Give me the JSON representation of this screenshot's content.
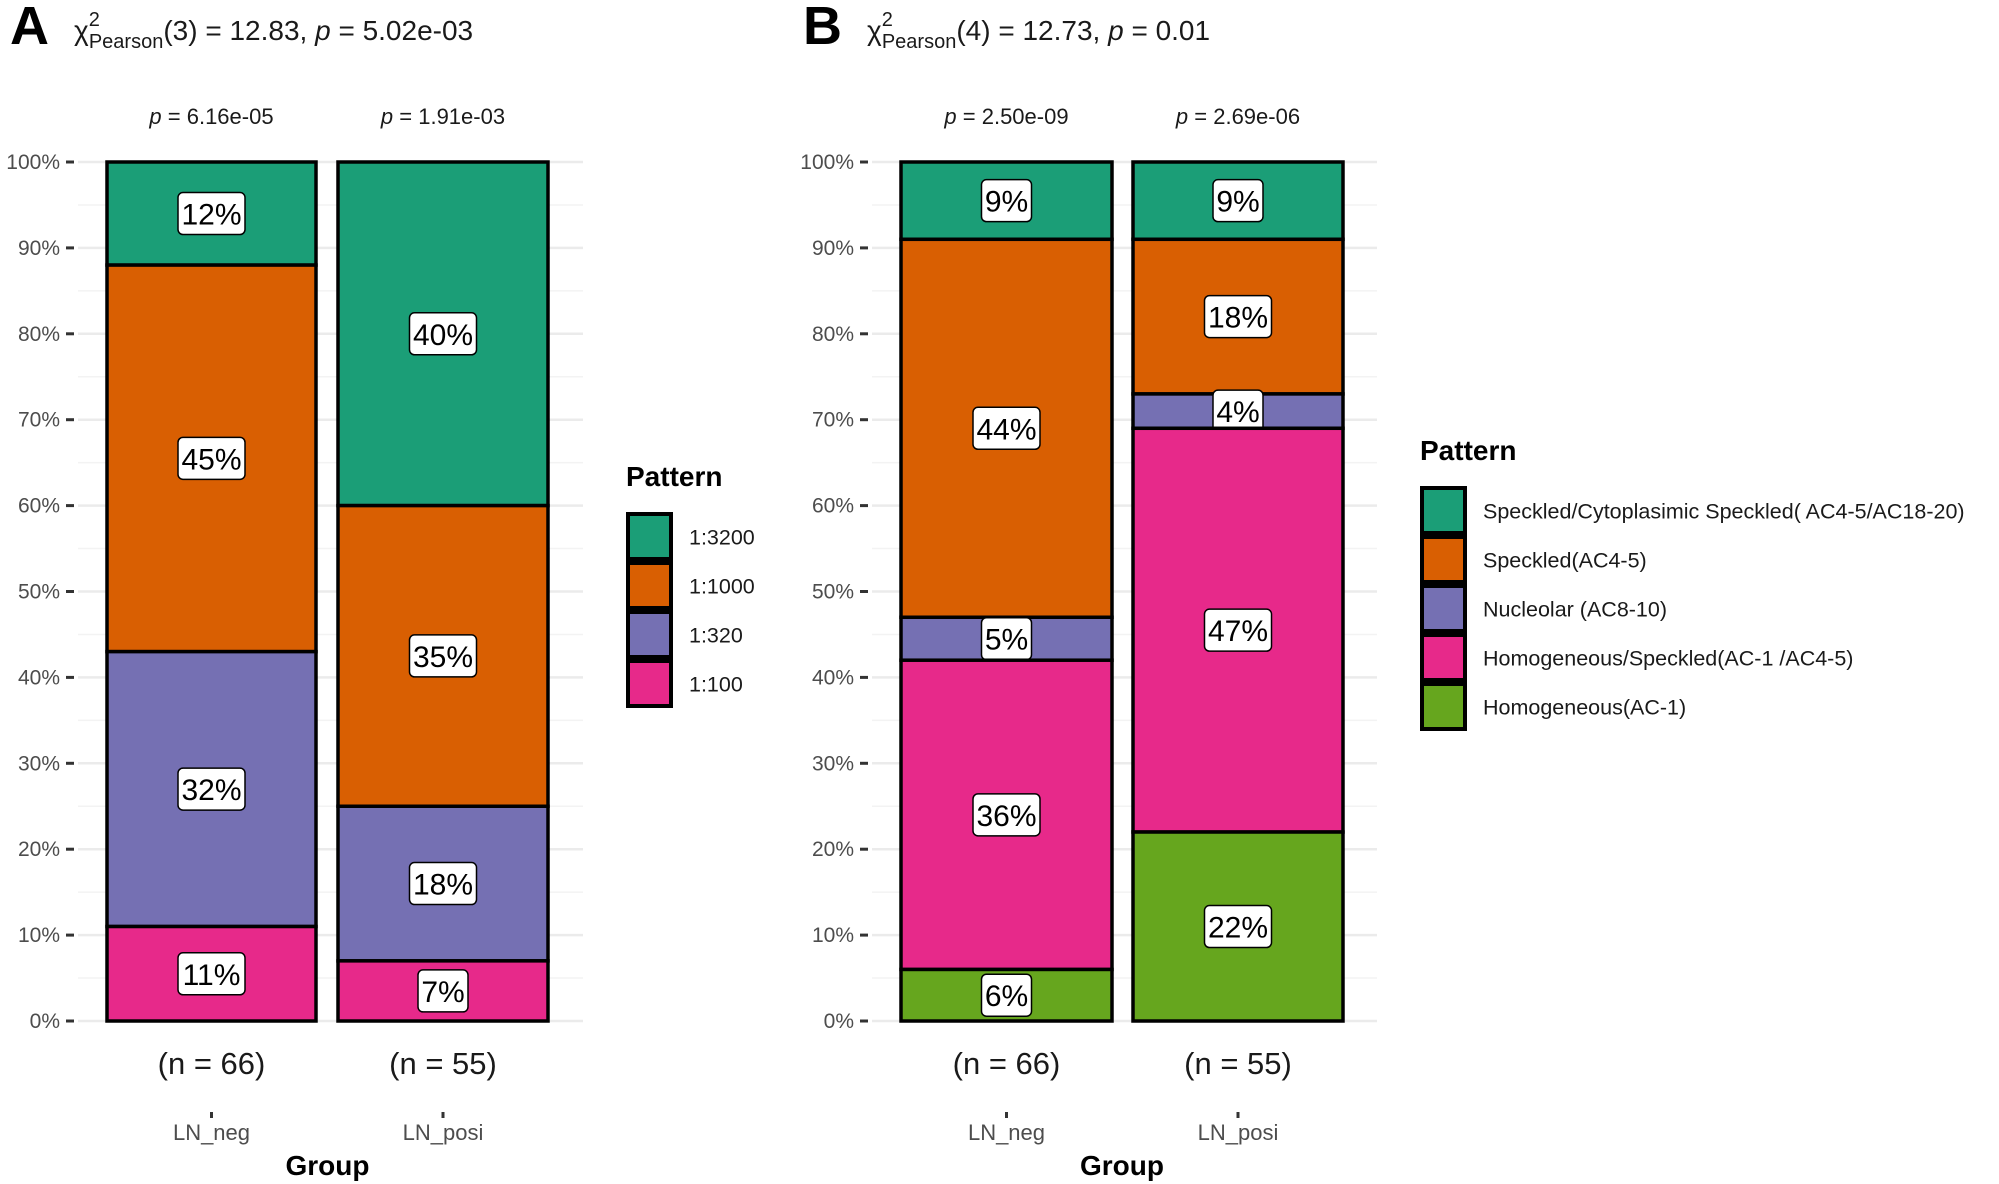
{
  "chart_data": [
    {
      "type": "bar",
      "stacked": true,
      "panel": "A",
      "subtitle": {
        "chi_label": "χ",
        "sup": "2",
        "sub": "Pearson",
        "rest": "(3) = 12.83, ",
        "p_italic": "p",
        "p_rest": " = 5.02e-03"
      },
      "xlabel": "Group",
      "ylabel": "",
      "ylim": [
        0,
        100
      ],
      "yticks": [
        "0%",
        "10%",
        "20%",
        "30%",
        "40%",
        "50%",
        "60%",
        "70%",
        "80%",
        "90%",
        "100%"
      ],
      "categories": [
        "LN_neg",
        "LN_posi"
      ],
      "n_labels": [
        "(n = 66)",
        "(n = 55)"
      ],
      "p_labels": [
        " = 6.16e-05",
        " = 1.91e-03"
      ],
      "legend_title": "Pattern",
      "legend_position": "right",
      "series": [
        {
          "name": "1:3200",
          "color": "#1b9e77",
          "values": [
            12,
            40
          ]
        },
        {
          "name": "1:1000",
          "color": "#d95f02",
          "values": [
            45,
            35
          ]
        },
        {
          "name": "1:320",
          "color": "#7570b3",
          "values": [
            32,
            18
          ]
        },
        {
          "name": "1:100",
          "color": "#e7298a",
          "values": [
            11,
            7
          ]
        }
      ]
    },
    {
      "type": "bar",
      "stacked": true,
      "panel": "B",
      "subtitle": {
        "chi_label": "χ",
        "sup": "2",
        "sub": "Pearson",
        "rest": "(4) = 12.73, ",
        "p_italic": "p",
        "p_rest": " = 0.01"
      },
      "xlabel": "Group",
      "ylabel": "",
      "ylim": [
        0,
        100
      ],
      "yticks": [
        "0%",
        "10%",
        "20%",
        "30%",
        "40%",
        "50%",
        "60%",
        "70%",
        "80%",
        "90%",
        "100%"
      ],
      "categories": [
        "LN_neg",
        "LN_posi"
      ],
      "n_labels": [
        "(n = 66)",
        "(n = 55)"
      ],
      "p_labels": [
        " = 2.50e-09",
        " = 2.69e-06"
      ],
      "legend_title": "Pattern",
      "legend_position": "right",
      "series": [
        {
          "name": "Speckled/Cytoplasimic Speckled( AC4-5/AC18-20)",
          "color": "#1b9e77",
          "values": [
            9,
            9
          ]
        },
        {
          "name": "Speckled(AC4-5)",
          "color": "#d95f02",
          "values": [
            44,
            18
          ]
        },
        {
          "name": "Nucleolar (AC8-10)",
          "color": "#7570b3",
          "values": [
            5,
            4
          ]
        },
        {
          "name": "Homogeneous/Speckled(AC-1 /AC4-5)",
          "color": "#e7298a",
          "values": [
            36,
            47
          ]
        },
        {
          "name": "Homogeneous(AC-1)",
          "color": "#66a61e",
          "values": [
            6,
            22
          ]
        }
      ]
    }
  ]
}
